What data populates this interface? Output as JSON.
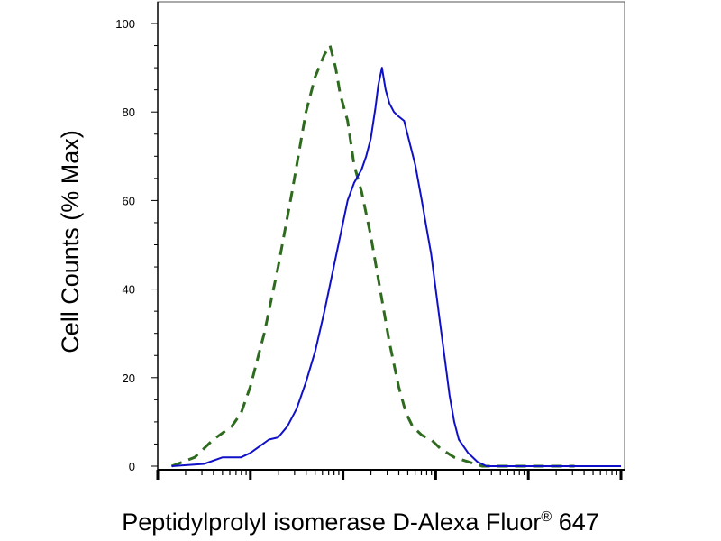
{
  "chart_data": {
    "type": "line",
    "title": "",
    "xlabel": "Peptidylprolyl isomerase D-Alexa Fluor",
    "xlabel_superscript": "®",
    "xlabel_suffix": " 647",
    "ylabel": "Cell Counts (% Max)",
    "x_scale": "log",
    "xlim": [
      -1,
      4
    ],
    "ylim": [
      0,
      100
    ],
    "y_ticks": [
      0,
      20,
      40,
      60,
      80,
      100
    ],
    "y_tick_labels": [
      "0",
      "20",
      "40",
      "60",
      "80",
      "100"
    ],
    "grid": false,
    "legend": "none",
    "series": [
      {
        "style": "dashed",
        "color": "#2e6b1f",
        "points": [
          [
            -0.85,
            0
          ],
          [
            -0.6,
            2
          ],
          [
            -0.4,
            6
          ],
          [
            -0.2,
            9
          ],
          [
            -0.1,
            12
          ],
          [
            0.0,
            18
          ],
          [
            0.15,
            30
          ],
          [
            0.3,
            45
          ],
          [
            0.45,
            62
          ],
          [
            0.6,
            80
          ],
          [
            0.7,
            88
          ],
          [
            0.8,
            93
          ],
          [
            0.86,
            95
          ],
          [
            0.92,
            90
          ],
          [
            0.97,
            84
          ],
          [
            1.05,
            78
          ],
          [
            1.12,
            68
          ],
          [
            1.2,
            62
          ],
          [
            1.3,
            52
          ],
          [
            1.4,
            40
          ],
          [
            1.5,
            28
          ],
          [
            1.6,
            18
          ],
          [
            1.68,
            12
          ],
          [
            1.75,
            9
          ],
          [
            1.85,
            7
          ],
          [
            1.95,
            6
          ],
          [
            2.05,
            4
          ],
          [
            2.2,
            2
          ],
          [
            2.35,
            1
          ],
          [
            2.5,
            0
          ],
          [
            3.0,
            0
          ],
          [
            3.5,
            0
          ]
        ]
      },
      {
        "style": "solid",
        "color": "#1010c8",
        "points": [
          [
            -0.85,
            0
          ],
          [
            -0.5,
            0.5
          ],
          [
            -0.3,
            2
          ],
          [
            -0.1,
            2
          ],
          [
            0.0,
            3
          ],
          [
            0.1,
            4.5
          ],
          [
            0.2,
            6
          ],
          [
            0.3,
            6.5
          ],
          [
            0.4,
            9
          ],
          [
            0.5,
            13
          ],
          [
            0.6,
            19
          ],
          [
            0.7,
            26
          ],
          [
            0.8,
            35
          ],
          [
            0.9,
            45
          ],
          [
            1.0,
            55
          ],
          [
            1.05,
            60
          ],
          [
            1.12,
            64
          ],
          [
            1.2,
            67
          ],
          [
            1.25,
            70
          ],
          [
            1.3,
            74
          ],
          [
            1.35,
            81
          ],
          [
            1.38,
            86
          ],
          [
            1.42,
            90
          ],
          [
            1.46,
            85
          ],
          [
            1.5,
            82
          ],
          [
            1.55,
            80
          ],
          [
            1.6,
            79
          ],
          [
            1.66,
            78
          ],
          [
            1.72,
            73
          ],
          [
            1.78,
            68
          ],
          [
            1.85,
            60
          ],
          [
            1.9,
            54
          ],
          [
            1.95,
            48
          ],
          [
            2.0,
            40
          ],
          [
            2.05,
            32
          ],
          [
            2.1,
            24
          ],
          [
            2.15,
            16
          ],
          [
            2.2,
            10
          ],
          [
            2.25,
            6
          ],
          [
            2.35,
            3
          ],
          [
            2.45,
            1
          ],
          [
            2.55,
            0
          ],
          [
            3.0,
            0
          ],
          [
            3.5,
            0
          ],
          [
            4.0,
            0
          ]
        ]
      }
    ]
  }
}
